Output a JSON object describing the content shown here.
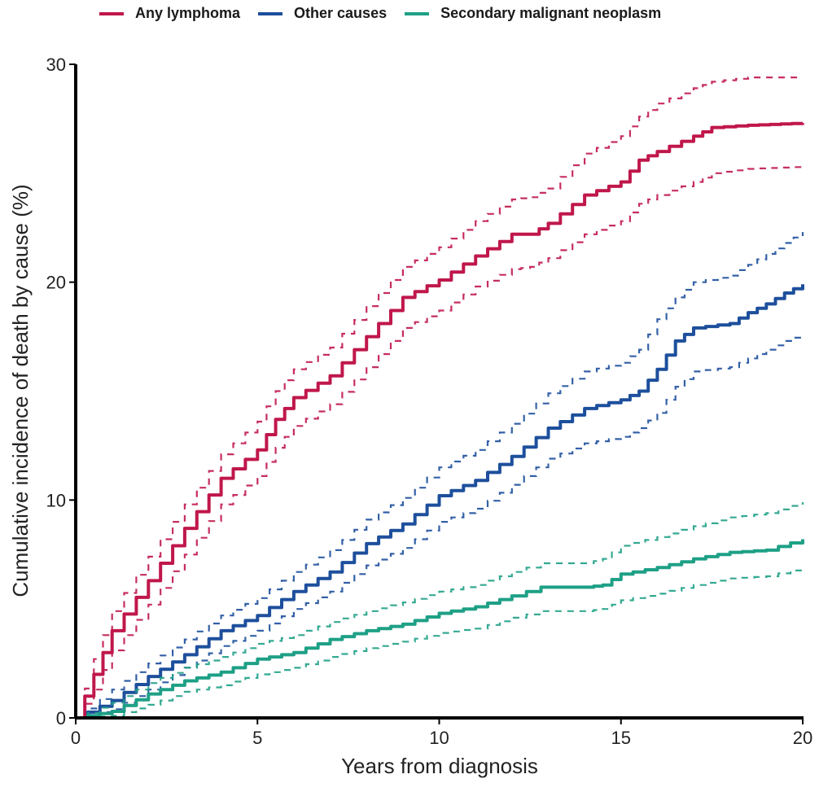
{
  "chart_data": {
    "type": "line",
    "title": "",
    "xlabel": "Years from diagnosis",
    "ylabel": "Cumulative incidence of death by cause (%)",
    "xlim": [
      0,
      20
    ],
    "ylim": [
      0,
      30
    ],
    "xticks": [
      "0",
      "5",
      "10",
      "15",
      "20"
    ],
    "yticks": [
      "0",
      "10",
      "20",
      "30"
    ],
    "grid": false,
    "legend_position": "top",
    "series": [
      {
        "name": "Any lymphoma",
        "color": "#c0174b",
        "x": [
          0,
          0.5,
          1,
          2,
          3,
          4,
          5,
          5.5,
          6,
          7,
          8,
          9,
          10,
          11,
          12,
          12.5,
          13,
          14,
          15,
          15.5,
          16,
          17,
          17.5,
          18.5,
          20
        ],
        "y": [
          0,
          2,
          4,
          6.3,
          8.7,
          11,
          12.3,
          13.7,
          14.7,
          15.7,
          17.5,
          19.3,
          20.1,
          21.2,
          22.2,
          22.2,
          22.7,
          24,
          24.6,
          25.6,
          26,
          26.7,
          27.1,
          27.2,
          27.3
        ],
        "ci_upper": [
          0,
          2.7,
          4.9,
          7.4,
          9.8,
          12.1,
          13.6,
          15,
          16,
          17,
          18.9,
          20.7,
          21.6,
          22.8,
          23.8,
          23.9,
          24.3,
          25.9,
          26.7,
          27.6,
          28.2,
          28.9,
          29.2,
          29.4,
          29.4
        ],
        "ci_lower": [
          0,
          1.3,
          3.1,
          5.2,
          7.5,
          9.8,
          11.1,
          12.4,
          13.4,
          14.4,
          16.1,
          17.9,
          18.7,
          19.8,
          20.6,
          20.7,
          21.1,
          22.2,
          22.8,
          23.6,
          24,
          24.6,
          25,
          25.2,
          25.3
        ]
      },
      {
        "name": "Other causes",
        "color": "#1d4f9c",
        "x": [
          0,
          1,
          2,
          3,
          4,
          5,
          6,
          7,
          8,
          9,
          10,
          11,
          12,
          13,
          14,
          15,
          15.5,
          16,
          16.5,
          17,
          18,
          18.5,
          19,
          19.5,
          20
        ],
        "y": [
          0,
          0.8,
          1.9,
          2.9,
          4,
          4.7,
          5.8,
          6.7,
          8,
          8.9,
          10.2,
          10.9,
          12,
          13.3,
          14.2,
          14.6,
          15,
          16,
          17.3,
          17.9,
          18.1,
          18.6,
          19,
          19.5,
          19.9
        ],
        "ci_upper": [
          0,
          1.3,
          2.5,
          3.6,
          4.7,
          5.5,
          6.7,
          7.7,
          9.1,
          10.1,
          11.5,
          12.3,
          13.5,
          14.9,
          15.9,
          16.3,
          16.9,
          18.3,
          19.3,
          20,
          20.3,
          20.8,
          21.3,
          21.8,
          22.3
        ],
        "ci_lower": [
          0,
          0.4,
          1.3,
          2.3,
          3.3,
          4,
          5,
          5.8,
          7,
          7.8,
          9,
          9.6,
          10.7,
          11.9,
          12.6,
          12.9,
          13.3,
          14,
          15.2,
          15.9,
          16.1,
          16.5,
          16.9,
          17.3,
          17.6
        ]
      },
      {
        "name": "Secondary malignant neoplasm",
        "color": "#1ea086",
        "x": [
          0,
          1,
          2,
          3,
          4,
          5,
          6,
          7,
          8,
          9,
          10,
          11,
          12,
          12.8,
          14,
          14.5,
          15,
          16,
          17,
          18,
          19,
          20
        ],
        "y": [
          0,
          0.3,
          1.1,
          1.7,
          2.1,
          2.7,
          3,
          3.6,
          4,
          4.3,
          4.8,
          5.1,
          5.6,
          6,
          6,
          6.1,
          6.6,
          6.9,
          7.3,
          7.6,
          7.7,
          8.2
        ],
        "ci_upper": [
          0,
          0.7,
          1.6,
          2.3,
          2.8,
          3.4,
          3.8,
          4.4,
          4.9,
          5.3,
          5.8,
          6.1,
          6.7,
          7.1,
          7.1,
          7.3,
          7.9,
          8.3,
          8.8,
          9.2,
          9.4,
          9.9
        ],
        "ci_lower": [
          0,
          0.1,
          0.6,
          1.2,
          1.5,
          2,
          2.3,
          2.8,
          3.2,
          3.5,
          3.9,
          4.1,
          4.6,
          4.9,
          4.9,
          5,
          5.4,
          5.7,
          6.1,
          6.4,
          6.5,
          6.9
        ]
      }
    ]
  }
}
